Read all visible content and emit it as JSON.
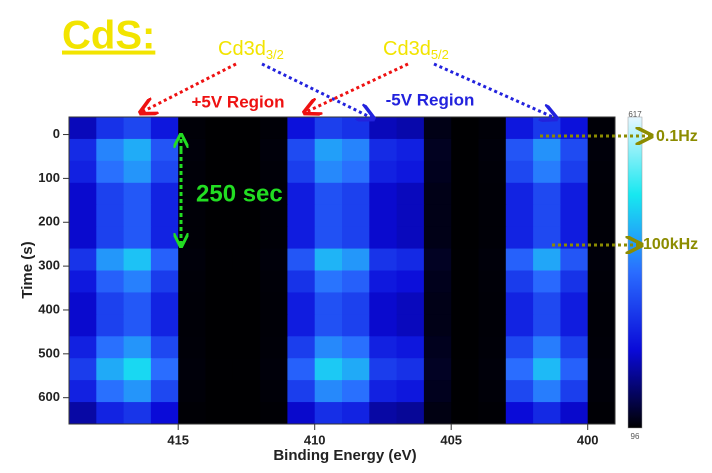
{
  "chart_data": {
    "type": "heatmap",
    "title": "CdS:",
    "x_label": "Binding Energy (eV)",
    "y_label": "Time (s)",
    "xlim": [
      419,
      399
    ],
    "ylim": [
      -40,
      660
    ],
    "xticks": [
      415,
      410,
      405,
      400
    ],
    "yticks": [
      0,
      100,
      200,
      300,
      400,
      500,
      600
    ],
    "x_edges": [
      419,
      418,
      417,
      416,
      415,
      414,
      413,
      412,
      411,
      410,
      409,
      408,
      407,
      406,
      405,
      404,
      403,
      402,
      401,
      400,
      399
    ],
    "y_edges": [
      -40,
      10,
      60,
      110,
      160,
      210,
      260,
      310,
      360,
      410,
      460,
      510,
      560,
      610,
      660
    ],
    "zlim": [
      96,
      617
    ],
    "colorscale": [
      "#000000",
      "#0a0ad8",
      "#2a6cff",
      "#17e8f0",
      "#e6f6ff"
    ],
    "z": [
      [
        208,
        280,
        307,
        244,
        100,
        97,
        97,
        100,
        235,
        298,
        280,
        208,
        199,
        109,
        97,
        100,
        244,
        289,
        235,
        100
      ],
      [
        270,
        382,
        424,
        326,
        102,
        97,
        97,
        102,
        312,
        410,
        382,
        270,
        256,
        116,
        97,
        102,
        326,
        396,
        312,
        102
      ],
      [
        257,
        361,
        400,
        309,
        101,
        97,
        97,
        101,
        296,
        387,
        361,
        257,
        244,
        114,
        97,
        101,
        309,
        374,
        296,
        101
      ],
      [
        220,
        300,
        330,
        260,
        100,
        97,
        97,
        100,
        250,
        320,
        300,
        220,
        210,
        110,
        97,
        100,
        260,
        310,
        250,
        100
      ],
      [
        220,
        300,
        330,
        260,
        100,
        97,
        97,
        100,
        250,
        320,
        300,
        220,
        210,
        110,
        97,
        100,
        260,
        310,
        250,
        100
      ],
      [
        220,
        300,
        330,
        260,
        100,
        97,
        97,
        100,
        250,
        320,
        300,
        220,
        210,
        110,
        97,
        100,
        260,
        310,
        250,
        100
      ],
      [
        282,
        402,
        447,
        342,
        102,
        98,
        98,
        102,
        327,
        432,
        402,
        282,
        267,
        117,
        98,
        102,
        342,
        417,
        327,
        102
      ],
      [
        245,
        341,
        377,
        293,
        101,
        97,
        97,
        101,
        281,
        365,
        341,
        245,
        233,
        113,
        97,
        101,
        293,
        353,
        281,
        101
      ],
      [
        220,
        300,
        330,
        260,
        100,
        97,
        97,
        100,
        250,
        320,
        300,
        220,
        210,
        110,
        97,
        100,
        260,
        310,
        250,
        100
      ],
      [
        220,
        300,
        330,
        260,
        100,
        97,
        97,
        100,
        250,
        320,
        300,
        220,
        210,
        110,
        97,
        100,
        260,
        310,
        250,
        100
      ],
      [
        257,
        361,
        400,
        309,
        101,
        97,
        97,
        101,
        296,
        387,
        361,
        257,
        244,
        114,
        97,
        101,
        309,
        374,
        296,
        101
      ],
      [
        294,
        422,
        470,
        358,
        102,
        98,
        98,
        102,
        342,
        454,
        422,
        294,
        278,
        118,
        98,
        102,
        358,
        438,
        342,
        102
      ],
      [
        257,
        361,
        400,
        309,
        101,
        97,
        97,
        101,
        296,
        387,
        361,
        257,
        244,
        114,
        97,
        101,
        309,
        374,
        296,
        101
      ],
      [
        195,
        259,
        283,
        227,
        99,
        97,
        97,
        99,
        219,
        275,
        259,
        195,
        187,
        107,
        97,
        99,
        227,
        267,
        219,
        99
      ]
    ],
    "annotations": {
      "peak_left": {
        "label": "Cd3d",
        "subscript": "3/2"
      },
      "peak_right": {
        "label": "Cd3d",
        "subscript": "5/2"
      },
      "plus_region": "+5V Region",
      "minus_region": "-5V Region",
      "duration": "250 sec",
      "low_freq": "0.1Hz",
      "high_freq": "100kHz"
    }
  }
}
